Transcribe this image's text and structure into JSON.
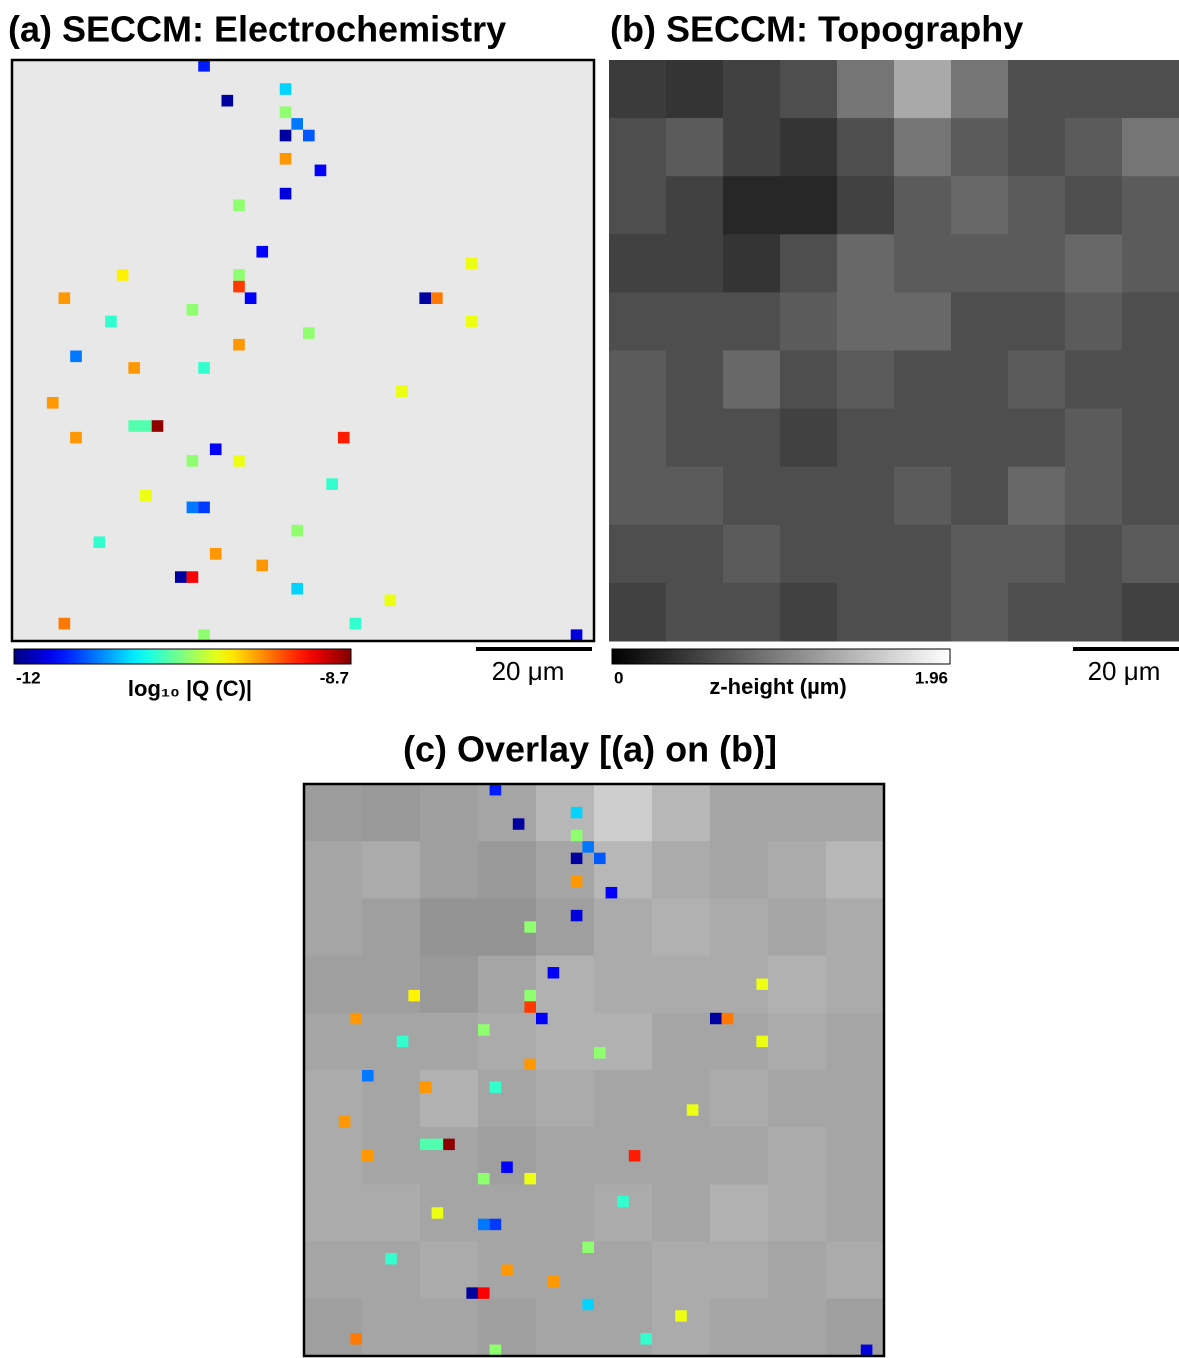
{
  "chart_data": [
    {
      "type": "scatter-map",
      "title": "(a) SECCM: Electrochemistry",
      "x": [
        16,
        18,
        23,
        23,
        24,
        23,
        25,
        23,
        26,
        23,
        19,
        21,
        39,
        9,
        19,
        19,
        20,
        4,
        35,
        36,
        15,
        39,
        8,
        25,
        19,
        5,
        10,
        16,
        33,
        3,
        10,
        11,
        12,
        5,
        28,
        17,
        15,
        19,
        27,
        11,
        15,
        16,
        24,
        7,
        17,
        21,
        14,
        15,
        24,
        32,
        4,
        29,
        16,
        48
      ],
      "y": [
        0,
        3,
        2,
        4,
        5,
        6,
        6,
        8,
        9,
        11,
        12,
        16,
        17,
        18,
        18,
        19,
        20,
        20,
        20,
        20,
        21,
        22,
        22,
        23,
        24,
        25,
        26,
        26,
        28,
        29,
        31,
        31,
        31,
        32,
        32,
        33,
        34,
        34,
        36,
        37,
        38,
        38,
        40,
        41,
        42,
        43,
        44,
        44,
        45,
        46,
        48,
        48,
        49,
        49
      ],
      "values": [
        -11.5,
        -11.9,
        -10.9,
        -10.3,
        -11.2,
        -11.9,
        -11.3,
        -9.6,
        -11.6,
        -11.7,
        -10.3,
        -11.6,
        -10.0,
        -9.9,
        -10.3,
        -9.3,
        -11.6,
        -9.6,
        -11.9,
        -9.5,
        -10.3,
        -10.0,
        -10.6,
        -10.3,
        -9.6,
        -11.2,
        -9.6,
        -10.6,
        -10.0,
        -9.6,
        -10.5,
        -10.5,
        -8.75,
        -9.6,
        -9.2,
        -11.6,
        -10.3,
        -10.0,
        -10.6,
        -10.0,
        -11.2,
        -11.4,
        -10.3,
        -10.6,
        -9.6,
        -9.6,
        -11.9,
        -9.1,
        -10.9,
        -10.0,
        -9.5,
        -10.6,
        -10.3,
        -11.7
      ],
      "xlim": [
        0,
        50
      ],
      "ylim": [
        0,
        50
      ],
      "background": "#e8e8e8",
      "clim": [
        -12,
        -8.7
      ],
      "cticks": [
        -12,
        -8.7
      ],
      "clabel": "log₁₀ |Q (C)|",
      "scale_bar": "20 μm"
    },
    {
      "type": "heatmap",
      "title": "(b) SECCM: Topography",
      "z": [
        [
          0.45,
          0.4,
          0.5,
          0.6,
          0.9,
          1.3,
          0.9,
          0.6,
          0.6,
          0.6
        ],
        [
          0.6,
          0.7,
          0.5,
          0.4,
          0.6,
          0.9,
          0.7,
          0.6,
          0.7,
          0.9
        ],
        [
          0.6,
          0.5,
          0.3,
          0.3,
          0.5,
          0.7,
          0.8,
          0.7,
          0.6,
          0.7
        ],
        [
          0.5,
          0.5,
          0.4,
          0.6,
          0.8,
          0.7,
          0.7,
          0.7,
          0.8,
          0.7
        ],
        [
          0.6,
          0.6,
          0.6,
          0.7,
          0.8,
          0.8,
          0.6,
          0.6,
          0.7,
          0.6
        ],
        [
          0.7,
          0.6,
          0.8,
          0.6,
          0.7,
          0.6,
          0.6,
          0.7,
          0.6,
          0.6
        ],
        [
          0.7,
          0.6,
          0.6,
          0.5,
          0.6,
          0.6,
          0.6,
          0.6,
          0.7,
          0.6
        ],
        [
          0.7,
          0.7,
          0.6,
          0.6,
          0.6,
          0.7,
          0.6,
          0.8,
          0.7,
          0.6
        ],
        [
          0.6,
          0.6,
          0.7,
          0.6,
          0.6,
          0.6,
          0.7,
          0.7,
          0.6,
          0.7
        ],
        [
          0.5,
          0.6,
          0.6,
          0.5,
          0.6,
          0.6,
          0.7,
          0.6,
          0.6,
          0.5
        ]
      ],
      "clim": [
        0,
        1.96
      ],
      "cticks": [
        0,
        1.96
      ],
      "clabel": "z-height (µm)",
      "scale_bar": "20 μm"
    },
    {
      "type": "overlay",
      "title": "(c) Overlay [(a) on (b)]"
    }
  ]
}
